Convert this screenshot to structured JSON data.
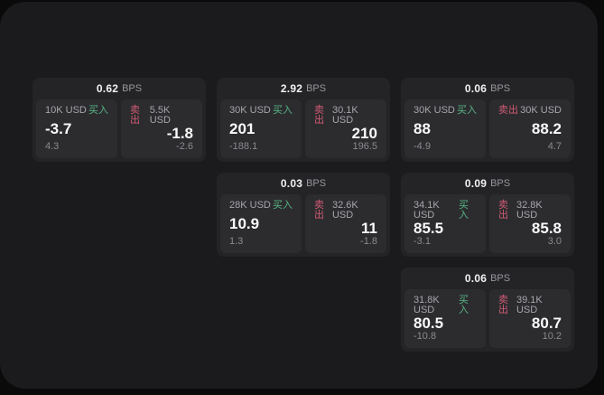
{
  "labels": {
    "buy": "买入",
    "sell": "卖出",
    "bps": "BPS"
  },
  "colors": {
    "page_bg": "#0a0a0b",
    "window_bg": "#1b1b1d",
    "card_bg": "#242427",
    "panel_bg": "#2c2c2f",
    "buy_green": "#58b583",
    "sell_red": "#d15a72",
    "primary_text": "#fafafa",
    "secondary_text": "#a6a6ab",
    "muted_text": "#8a8a8f"
  },
  "cards": [
    {
      "bps": "0.62",
      "buy": {
        "amount": "10K USD",
        "value": "-3.7",
        "delta": "4.3"
      },
      "sell": {
        "amount": "5.5K USD",
        "value": "-1.8",
        "delta": "-2.6"
      }
    },
    {
      "bps": "2.92",
      "buy": {
        "amount": "30K USD",
        "value": "201",
        "delta": "-188.1"
      },
      "sell": {
        "amount": "30.1K USD",
        "value": "210",
        "delta": "196.5"
      }
    },
    {
      "bps": "0.06",
      "buy": {
        "amount": "30K USD",
        "value": "88",
        "delta": "-4.9"
      },
      "sell": {
        "amount": "30K USD",
        "value": "88.2",
        "delta": "4.7"
      }
    },
    {
      "bps": "0.03",
      "buy": {
        "amount": "28K USD",
        "value": "10.9",
        "delta": "1.3"
      },
      "sell": {
        "amount": "32.6K USD",
        "value": "11",
        "delta": "-1.8"
      }
    },
    {
      "bps": "0.09",
      "buy": {
        "amount": "34.1K USD",
        "value": "85.5",
        "delta": "-3.1"
      },
      "sell": {
        "amount": "32.8K USD",
        "value": "85.8",
        "delta": "3.0"
      }
    },
    {
      "bps": "0.06",
      "buy": {
        "amount": "31.8K USD",
        "value": "80.5",
        "delta": "-10.8"
      },
      "sell": {
        "amount": "39.1K USD",
        "value": "80.7",
        "delta": "10.2"
      }
    }
  ]
}
